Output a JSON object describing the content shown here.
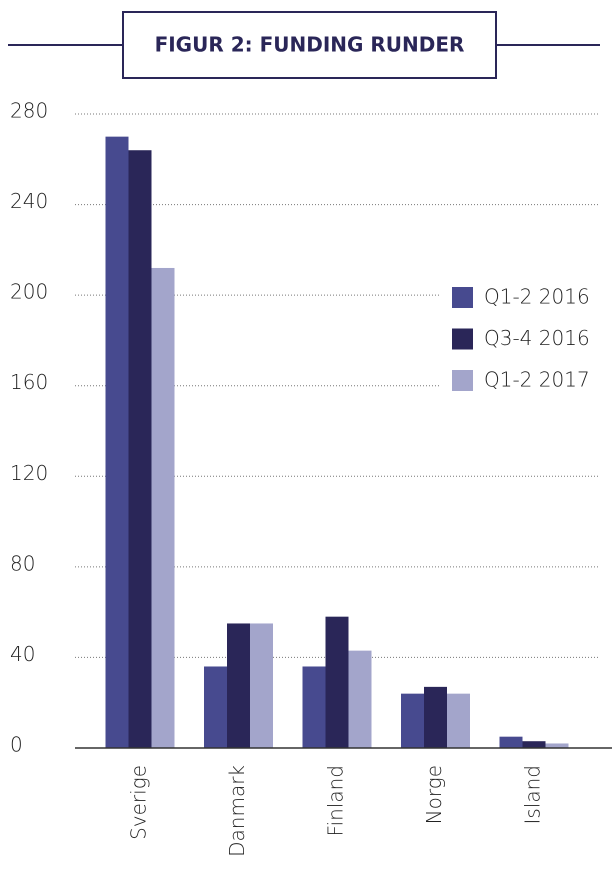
{
  "chart_data": {
    "type": "bar",
    "title": "FIGUR 2: FUNDING RUNDER",
    "categories": [
      "Sverige",
      "Danmark",
      "Finland",
      "Norge",
      "Island"
    ],
    "series": [
      {
        "name": "Q1-2 2016",
        "color": "#474a8f",
        "values": [
          270,
          36,
          36,
          24,
          5
        ]
      },
      {
        "name": "Q3-4 2016",
        "color": "#2a2658",
        "values": [
          264,
          55,
          58,
          27,
          3
        ]
      },
      {
        "name": "Q1-2 2017",
        "color": "#a3a5cb",
        "values": [
          212,
          55,
          43,
          24,
          2
        ]
      }
    ],
    "ylim": [
      0,
      280
    ],
    "yticks": [
      0,
      40,
      80,
      120,
      160,
      200,
      240,
      280
    ],
    "grid": true,
    "legend": "right"
  }
}
